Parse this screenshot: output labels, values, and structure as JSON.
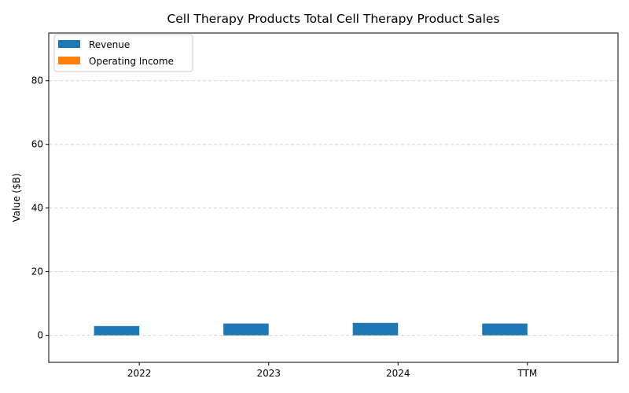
{
  "chart_data": {
    "type": "bar",
    "title": "Cell Therapy Products Total Cell Therapy Product Sales",
    "xlabel": "",
    "ylabel": "Value ($B)",
    "categories": [
      "2022",
      "2023",
      "2024",
      "TTM"
    ],
    "series": [
      {
        "name": "Revenue",
        "values": [
          2.9,
          3.7,
          3.9,
          3.7
        ],
        "color": "#1f77b4"
      },
      {
        "name": "Operating Income",
        "values": [
          0,
          0,
          0,
          0
        ],
        "color": "#ff7f0e"
      }
    ],
    "ylim": [
      -8.5,
      95
    ],
    "yticks": [
      0,
      20,
      40,
      60,
      80
    ],
    "grid": "y-dashed",
    "legend": "top-left"
  }
}
